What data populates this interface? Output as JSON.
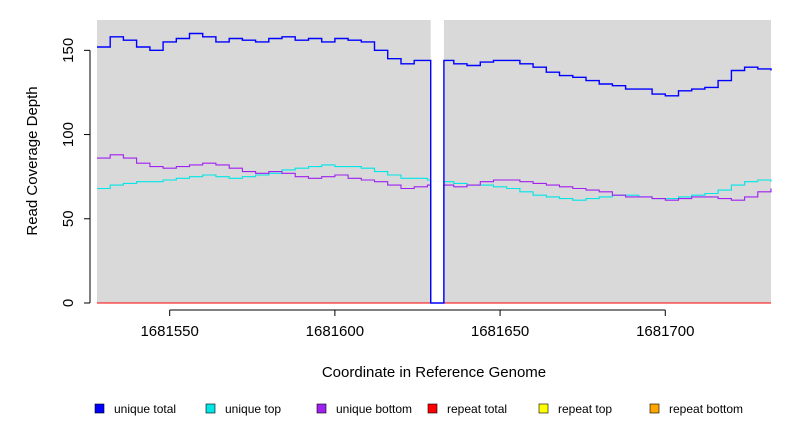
{
  "chart_data": {
    "type": "line",
    "title": "",
    "xlabel": "Coordinate in Reference Genome",
    "ylabel": "Read Coverage Depth",
    "xlim": [
      1681528,
      1681732
    ],
    "ylim": [
      0,
      168
    ],
    "x_ticks": [
      1681550,
      1681600,
      1681650,
      1681700
    ],
    "x_tick_labels": [
      "1681550",
      "1681600",
      "1681650",
      "1681700"
    ],
    "y_ticks": [
      0,
      50,
      100,
      150
    ],
    "y_tick_labels": [
      "0",
      "50",
      "100",
      "150"
    ],
    "grid": false,
    "plot_background": "#d9d9d9",
    "legend_position": "bottom",
    "gap": {
      "start": 1681629,
      "end": 1681633
    },
    "series": [
      {
        "name": "unique total",
        "color": "#0000ff",
        "x": [
          1681528,
          1681532,
          1681536,
          1681540,
          1681544,
          1681548,
          1681552,
          1681556,
          1681560,
          1681564,
          1681568,
          1681572,
          1681576,
          1681580,
          1681584,
          1681588,
          1681592,
          1681596,
          1681600,
          1681604,
          1681608,
          1681612,
          1681616,
          1681620,
          1681624,
          1681628,
          1681629,
          1681633,
          1681636,
          1681640,
          1681644,
          1681648,
          1681652,
          1681656,
          1681660,
          1681664,
          1681668,
          1681672,
          1681676,
          1681680,
          1681684,
          1681688,
          1681692,
          1681696,
          1681700,
          1681704,
          1681708,
          1681712,
          1681716,
          1681720,
          1681724,
          1681728,
          1681732
        ],
        "values": [
          152,
          158,
          156,
          152,
          150,
          155,
          157,
          160,
          158,
          155,
          157,
          156,
          155,
          157,
          158,
          156,
          157,
          155,
          157,
          156,
          155,
          150,
          145,
          142,
          144,
          144,
          0,
          144,
          142,
          141,
          143,
          144,
          144,
          142,
          140,
          137,
          135,
          134,
          132,
          130,
          129,
          127,
          127,
          124,
          123,
          126,
          127,
          128,
          132,
          138,
          140,
          139,
          138
        ]
      },
      {
        "name": "unique top",
        "color": "#00e5e5",
        "x": [
          1681528,
          1681532,
          1681536,
          1681540,
          1681544,
          1681548,
          1681552,
          1681556,
          1681560,
          1681564,
          1681568,
          1681572,
          1681576,
          1681580,
          1681584,
          1681588,
          1681592,
          1681596,
          1681600,
          1681604,
          1681608,
          1681612,
          1681616,
          1681620,
          1681624,
          1681628,
          1681629,
          1681633,
          1681636,
          1681640,
          1681644,
          1681648,
          1681652,
          1681656,
          1681660,
          1681664,
          1681668,
          1681672,
          1681676,
          1681680,
          1681684,
          1681688,
          1681692,
          1681696,
          1681700,
          1681704,
          1681708,
          1681712,
          1681716,
          1681720,
          1681724,
          1681728,
          1681732
        ],
        "values": [
          68,
          70,
          71,
          72,
          72,
          73,
          74,
          75,
          76,
          75,
          74,
          75,
          76,
          77,
          79,
          80,
          81,
          82,
          81,
          81,
          80,
          78,
          76,
          74,
          74,
          73,
          0,
          72,
          71,
          70,
          70,
          69,
          68,
          66,
          64,
          63,
          62,
          61,
          62,
          63,
          64,
          64,
          63,
          62,
          62,
          63,
          64,
          65,
          67,
          70,
          72,
          73,
          72
        ]
      },
      {
        "name": "unique bottom",
        "color": "#a020f0",
        "x": [
          1681528,
          1681532,
          1681536,
          1681540,
          1681544,
          1681548,
          1681552,
          1681556,
          1681560,
          1681564,
          1681568,
          1681572,
          1681576,
          1681580,
          1681584,
          1681588,
          1681592,
          1681596,
          1681600,
          1681604,
          1681608,
          1681612,
          1681616,
          1681620,
          1681624,
          1681628,
          1681629,
          1681633,
          1681636,
          1681640,
          1681644,
          1681648,
          1681652,
          1681656,
          1681660,
          1681664,
          1681668,
          1681672,
          1681676,
          1681680,
          1681684,
          1681688,
          1681692,
          1681696,
          1681700,
          1681704,
          1681708,
          1681712,
          1681716,
          1681720,
          1681724,
          1681728,
          1681732
        ],
        "values": [
          86,
          88,
          86,
          83,
          81,
          80,
          81,
          82,
          83,
          82,
          80,
          78,
          77,
          78,
          77,
          75,
          74,
          75,
          76,
          74,
          73,
          72,
          70,
          68,
          69,
          70,
          0,
          70,
          69,
          70,
          72,
          73,
          73,
          72,
          71,
          70,
          69,
          68,
          67,
          66,
          64,
          63,
          63,
          62,
          61,
          62,
          63,
          63,
          62,
          61,
          63,
          66,
          68
        ]
      },
      {
        "name": "repeat total",
        "color": "#ff0000",
        "x": [
          1681528,
          1681732
        ],
        "values": [
          0,
          0
        ]
      },
      {
        "name": "repeat top",
        "color": "#ffff00",
        "x": [
          1681528,
          1681732
        ],
        "values": [
          0,
          0
        ]
      },
      {
        "name": "repeat bottom",
        "color": "#ffa500",
        "x": [
          1681528,
          1681732
        ],
        "values": [
          0,
          0
        ]
      }
    ]
  }
}
